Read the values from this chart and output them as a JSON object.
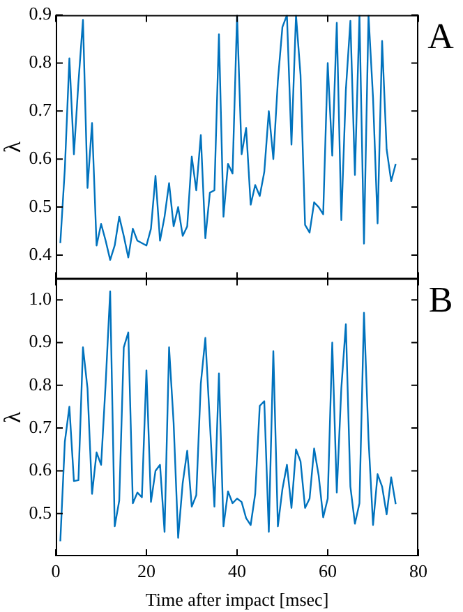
{
  "chart_data": [
    {
      "type": "line",
      "annotations": [
        "A"
      ],
      "ylabel": "λ",
      "xlim": [
        0,
        80
      ],
      "xticks": [
        0,
        20,
        40,
        60,
        80
      ],
      "ylim": [
        0.35,
        0.9
      ],
      "yticks": [
        0.4,
        0.5,
        0.6,
        0.7,
        0.8,
        0.9
      ],
      "tick_labels": "y",
      "grid": false,
      "legend": false,
      "marker": "none",
      "x": [
        1,
        2,
        3,
        4,
        5,
        6,
        7,
        8,
        9,
        10,
        11,
        12,
        13,
        14,
        15,
        16,
        17,
        18,
        19,
        20,
        21,
        22,
        23,
        24,
        25,
        26,
        27,
        28,
        29,
        30,
        31,
        32,
        33,
        34,
        35,
        36,
        37,
        38,
        39,
        40,
        41,
        42,
        43,
        44,
        45,
        46,
        47,
        48,
        49,
        50,
        51,
        52,
        53,
        54,
        55,
        56,
        57,
        58,
        59,
        60,
        61,
        62,
        63,
        64,
        65,
        66,
        67,
        68,
        69,
        70,
        71,
        72,
        73,
        74,
        75
      ],
      "series": [
        {
          "color": "#0072bd",
          "values": [
            0.425,
            0.58,
            0.81,
            0.61,
            0.76,
            0.89,
            0.54,
            0.675,
            0.42,
            0.465,
            0.43,
            0.39,
            0.42,
            0.48,
            0.44,
            0.395,
            0.455,
            0.43,
            0.425,
            0.42,
            0.455,
            0.565,
            0.43,
            0.48,
            0.55,
            0.46,
            0.5,
            0.44,
            0.46,
            0.605,
            0.535,
            0.65,
            0.435,
            0.53,
            0.535,
            0.86,
            0.48,
            0.59,
            0.57,
            0.9,
            0.61,
            0.665,
            0.505,
            0.546,
            0.523,
            0.573,
            0.7,
            0.6,
            0.763,
            0.875,
            0.9,
            0.63,
            0.9,
            0.775,
            0.463,
            0.447,
            0.51,
            0.5,
            0.485,
            0.8,
            0.607,
            0.884,
            0.473,
            0.744,
            0.888,
            0.567,
            0.9,
            0.424,
            0.9,
            0.727,
            0.466,
            0.846,
            0.62,
            0.554,
            0.59
          ]
        }
      ]
    },
    {
      "type": "line",
      "annotations": [
        "B"
      ],
      "ylabel": "λ",
      "xlabel": "Time after impact [msec]",
      "xlim": [
        0,
        80
      ],
      "xticks": [
        0,
        20,
        40,
        60,
        80
      ],
      "ylim": [
        0.4,
        1.05
      ],
      "yticks": [
        0.5,
        0.6,
        0.7,
        0.8,
        0.9,
        {
          "value": 1,
          "label": "1.0"
        }
      ],
      "grid": false,
      "legend": false,
      "marker": "none",
      "x": [
        1,
        2,
        3,
        4,
        5,
        6,
        7,
        8,
        9,
        10,
        11,
        12,
        13,
        14,
        15,
        16,
        17,
        18,
        19,
        20,
        21,
        22,
        23,
        24,
        25,
        26,
        27,
        28,
        29,
        30,
        31,
        32,
        33,
        34,
        35,
        36,
        37,
        38,
        39,
        40,
        41,
        42,
        43,
        44,
        45,
        46,
        47,
        48,
        49,
        50,
        51,
        52,
        53,
        54,
        55,
        56,
        57,
        58,
        59,
        60,
        61,
        62,
        63,
        64,
        65,
        66,
        67,
        68,
        69,
        70,
        71,
        72,
        73,
        74,
        75
      ],
      "series": [
        {
          "color": "#0072bd",
          "values": [
            0.435,
            0.668,
            0.75,
            0.576,
            0.578,
            0.889,
            0.793,
            0.546,
            0.643,
            0.614,
            0.804,
            1.02,
            0.47,
            0.53,
            0.889,
            0.924,
            0.524,
            0.549,
            0.538,
            0.835,
            0.527,
            0.6,
            0.614,
            0.457,
            0.889,
            0.712,
            0.443,
            0.571,
            0.647,
            0.516,
            0.543,
            0.804,
            0.911,
            0.712,
            0.516,
            0.828,
            0.47,
            0.552,
            0.524,
            0.535,
            0.527,
            0.489,
            0.473,
            0.546,
            0.752,
            0.763,
            0.457,
            0.88,
            0.47,
            0.557,
            0.614,
            0.513,
            0.65,
            0.622,
            0.513,
            0.535,
            0.652,
            0.589,
            0.491,
            0.535,
            0.9,
            0.549,
            0.793,
            0.943,
            0.563,
            0.476,
            0.524,
            0.97,
            0.674,
            0.473,
            0.592,
            0.563,
            0.498,
            0.585,
            0.522
          ]
        }
      ]
    }
  ]
}
